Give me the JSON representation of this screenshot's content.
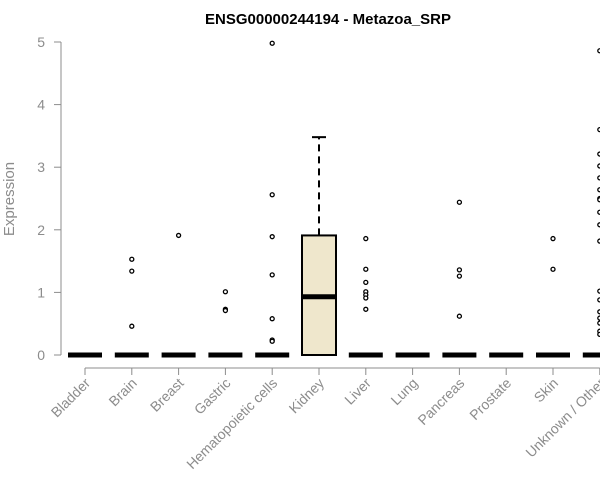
{
  "chart_data": {
    "type": "box",
    "title": "ENSG00000244194 - Metazoa_SRP",
    "xlabel": "",
    "ylabel": "Expression",
    "ylim": [
      0,
      5
    ],
    "yticks": [
      0,
      1,
      2,
      3,
      4,
      5
    ],
    "grid": false,
    "colors": {
      "box_fill": "#efe7cc",
      "outline": "#000000",
      "axis": "#8c8c8c"
    },
    "categories": [
      "Bladder",
      "Brain",
      "Breast",
      "Gastric",
      "Hematopoietic cells",
      "Kidney",
      "Liver",
      "Lung",
      "Pancreas",
      "Prostate",
      "Skin",
      "Unknown / Other"
    ],
    "boxes": [
      {
        "category": "Bladder",
        "q1": 0,
        "median": 0,
        "q3": 0,
        "whisker_low": 0,
        "whisker_high": 0,
        "outliers": []
      },
      {
        "category": "Brain",
        "q1": 0,
        "median": 0,
        "q3": 0,
        "whisker_low": 0,
        "whisker_high": 0,
        "outliers": [
          1.53,
          1.34,
          0.46
        ]
      },
      {
        "category": "Breast",
        "q1": 0,
        "median": 0,
        "q3": 0,
        "whisker_low": 0,
        "whisker_high": 0,
        "outliers": [
          1.91
        ]
      },
      {
        "category": "Gastric",
        "q1": 0,
        "median": 0,
        "q3": 0,
        "whisker_low": 0,
        "whisker_high": 0,
        "outliers": [
          1.01,
          0.73,
          0.71
        ]
      },
      {
        "category": "Hematopoietic cells",
        "q1": 0,
        "median": 0,
        "q3": 0,
        "whisker_low": 0,
        "whisker_high": 0,
        "outliers": [
          4.98,
          2.56,
          1.89,
          1.28,
          0.58,
          0.24,
          0.22
        ]
      },
      {
        "category": "Kidney",
        "q1": 0,
        "median": 0.93,
        "q3": 1.91,
        "whisker_low": 0,
        "whisker_high": 3.48,
        "outliers": []
      },
      {
        "category": "Liver",
        "q1": 0,
        "median": 0,
        "q3": 0,
        "whisker_low": 0,
        "whisker_high": 0,
        "outliers": [
          1.86,
          1.37,
          1.16,
          1.01,
          0.96,
          0.91,
          0.73
        ]
      },
      {
        "category": "Lung",
        "q1": 0,
        "median": 0,
        "q3": 0,
        "whisker_low": 0,
        "whisker_high": 0,
        "outliers": []
      },
      {
        "category": "Pancreas",
        "q1": 0,
        "median": 0,
        "q3": 0,
        "whisker_low": 0,
        "whisker_high": 0,
        "outliers": [
          2.44,
          1.36,
          1.26,
          0.62
        ]
      },
      {
        "category": "Prostate",
        "q1": 0,
        "median": 0,
        "q3": 0,
        "whisker_low": 0,
        "whisker_high": 0,
        "outliers": []
      },
      {
        "category": "Skin",
        "q1": 0,
        "median": 0,
        "q3": 0,
        "whisker_low": 0,
        "whisker_high": 0,
        "outliers": [
          1.86,
          1.37
        ]
      },
      {
        "category": "Unknown / Other",
        "q1": 0,
        "median": 0,
        "q3": 0,
        "whisker_low": 0,
        "whisker_high": 0,
        "outliers": [
          4.86,
          3.6,
          3.21,
          3.02,
          2.83,
          2.64,
          2.5,
          2.48,
          2.28,
          2.08,
          1.82,
          1.02,
          0.88,
          0.69,
          0.59,
          0.51,
          0.38,
          0.33
        ]
      }
    ]
  }
}
